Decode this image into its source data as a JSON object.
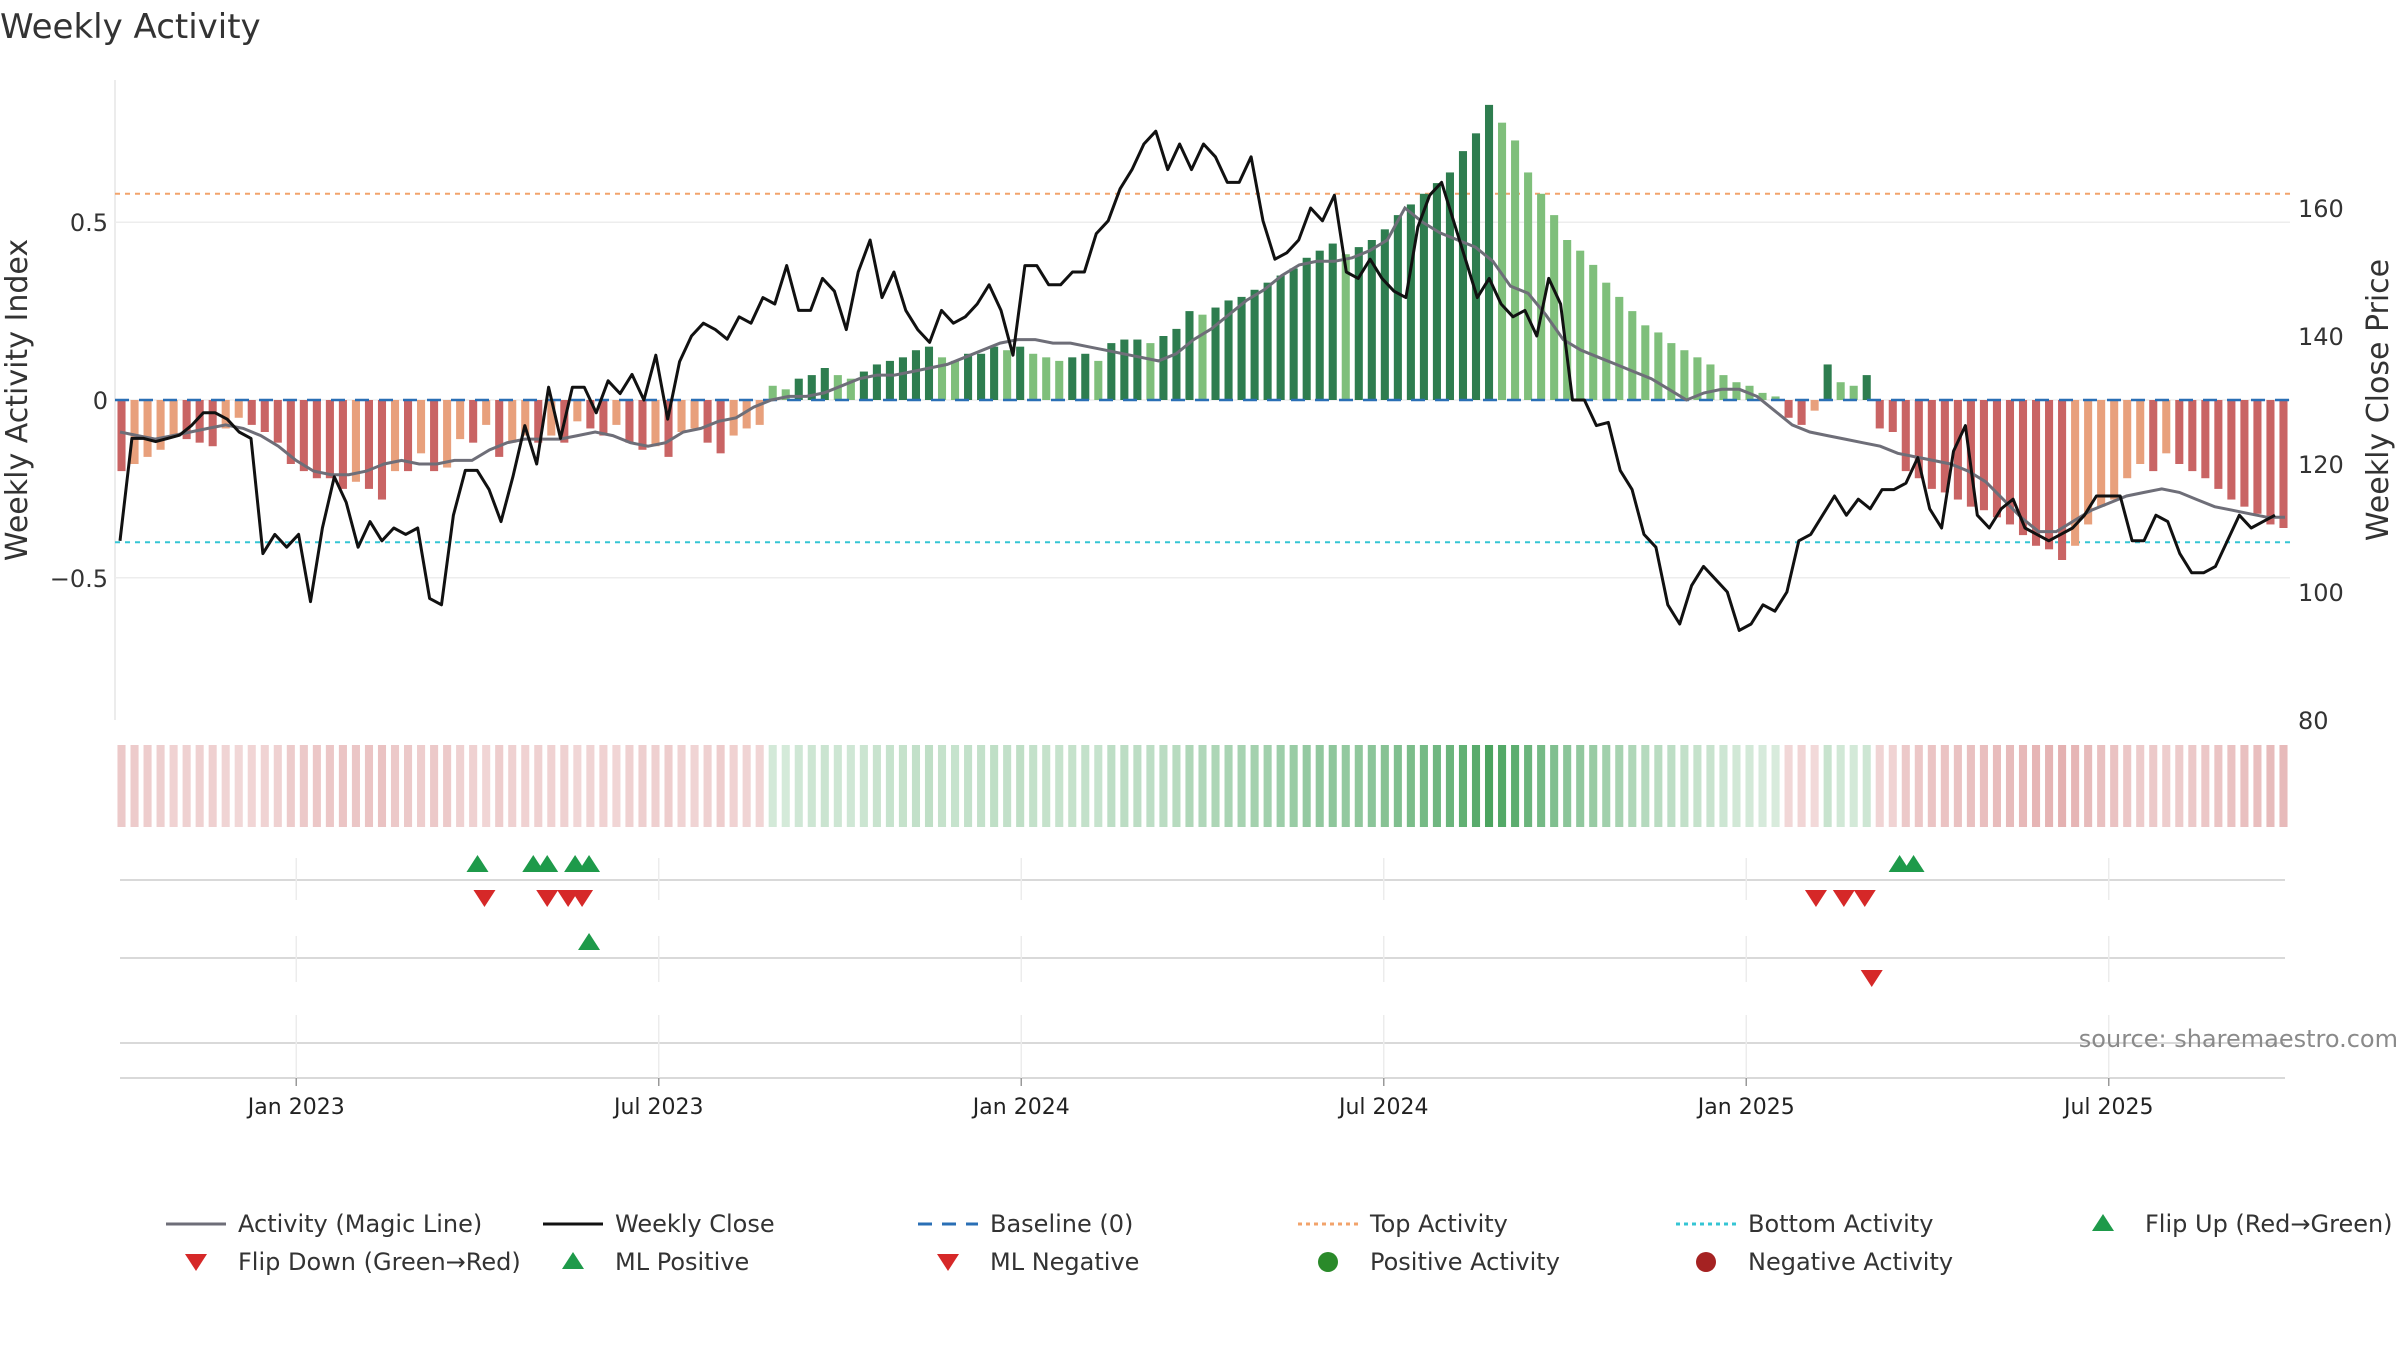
{
  "chart_data": {
    "type": "bar",
    "title": "Weekly Activity",
    "ylabel_left": "Weekly Activity Index",
    "ylabel_right": "Weekly Close Price",
    "left_ticks": [
      {
        "value": 0.5,
        "label": "0.5"
      },
      {
        "value": 0,
        "label": "0"
      },
      {
        "value": -0.5,
        "label": "−0.5"
      }
    ],
    "right_ticks": [
      {
        "value": 160,
        "label": "160"
      },
      {
        "value": 140,
        "label": "140"
      },
      {
        "value": 120,
        "label": "120"
      },
      {
        "value": 100,
        "label": "100"
      },
      {
        "value": 80,
        "label": "80"
      }
    ],
    "left_range": [
      -0.9,
      0.9
    ],
    "right_range": [
      80,
      180
    ],
    "x_range": [
      -13,
      143
    ],
    "x_ticks": [
      {
        "week": 0,
        "label": "Jan 2023"
      },
      {
        "week": 26,
        "label": "Jul 2023"
      },
      {
        "week": 52,
        "label": "Jan 2024"
      },
      {
        "week": 78,
        "label": "Jul 2024"
      },
      {
        "week": 104,
        "label": "Jan 2025"
      },
      {
        "week": 130,
        "label": "Jul 2025"
      }
    ],
    "top_activity": 0.58,
    "bottom_activity": -0.4,
    "baseline": 0,
    "series": {
      "activity_index": [
        -0.2,
        -0.18,
        -0.16,
        -0.14,
        -0.1,
        -0.11,
        -0.12,
        -0.13,
        -0.08,
        -0.05,
        -0.07,
        -0.09,
        -0.12,
        -0.18,
        -0.2,
        -0.22,
        -0.22,
        -0.25,
        -0.23,
        -0.25,
        -0.28,
        -0.2,
        -0.2,
        -0.15,
        -0.2,
        -0.19,
        -0.11,
        -0.12,
        -0.07,
        -0.16,
        -0.12,
        -0.1,
        -0.12,
        -0.1,
        -0.12,
        -0.06,
        -0.08,
        -0.1,
        -0.07,
        -0.12,
        -0.14,
        -0.13,
        -0.16,
        -0.09,
        -0.08,
        -0.12,
        -0.15,
        -0.1,
        -0.08,
        -0.07,
        0.04,
        0.03,
        0.06,
        0.07,
        0.09,
        0.07,
        0.06,
        0.08,
        0.1,
        0.11,
        0.12,
        0.14,
        0.15,
        0.12,
        0.11,
        0.13,
        0.13,
        0.15,
        0.14,
        0.15,
        0.13,
        0.12,
        0.11,
        0.12,
        0.13,
        0.11,
        0.16,
        0.17,
        0.17,
        0.16,
        0.18,
        0.2,
        0.25,
        0.24,
        0.26,
        0.28,
        0.29,
        0.31,
        0.33,
        0.35,
        0.37,
        0.4,
        0.42,
        0.44,
        0.41,
        0.43,
        0.45,
        0.48,
        0.52,
        0.55,
        0.58,
        0.61,
        0.64,
        0.7,
        0.75,
        0.83,
        0.78,
        0.73,
        0.64,
        0.58,
        0.52,
        0.45,
        0.42,
        0.38,
        0.33,
        0.29,
        0.25,
        0.21,
        0.19,
        0.16,
        0.14,
        0.12,
        0.1,
        0.07,
        0.05,
        0.04,
        0.02,
        0.01,
        -0.05,
        -0.07,
        -0.03,
        0.1,
        0.05,
        0.04,
        0.07,
        -0.08,
        -0.09,
        -0.2,
        -0.22,
        -0.25,
        -0.26,
        -0.28,
        -0.3,
        -0.31,
        -0.33,
        -0.35,
        -0.38,
        -0.41,
        -0.42,
        -0.45,
        -0.41,
        -0.35,
        -0.3,
        -0.28,
        -0.22,
        -0.18,
        -0.2,
        -0.15,
        -0.18,
        -0.2,
        -0.22,
        -0.25,
        -0.28,
        -0.3,
        -0.32,
        -0.35,
        -0.36
      ],
      "magic_line": [
        -0.09,
        -0.1,
        -0.11,
        -0.1,
        -0.09,
        -0.08,
        -0.07,
        -0.08,
        -0.1,
        -0.13,
        -0.17,
        -0.2,
        -0.21,
        -0.21,
        -0.2,
        -0.18,
        -0.17,
        -0.18,
        -0.18,
        -0.17,
        -0.17,
        -0.14,
        -0.12,
        -0.11,
        -0.11,
        -0.11,
        -0.1,
        -0.09,
        -0.1,
        -0.12,
        -0.13,
        -0.12,
        -0.09,
        -0.08,
        -0.06,
        -0.05,
        -0.02,
        0,
        0.01,
        0.01,
        0.02,
        0.04,
        0.06,
        0.07,
        0.07,
        0.08,
        0.09,
        0.1,
        0.12,
        0.14,
        0.16,
        0.17,
        0.17,
        0.16,
        0.16,
        0.15,
        0.14,
        0.13,
        0.12,
        0.11,
        0.13,
        0.17,
        0.2,
        0.24,
        0.28,
        0.31,
        0.35,
        0.38,
        0.39,
        0.39,
        0.4,
        0.42,
        0.45,
        0.54,
        0.5,
        0.47,
        0.45,
        0.43,
        0.39,
        0.32,
        0.3,
        0.24,
        0.17,
        0.14,
        0.12,
        0.1,
        0.08,
        0.06,
        0.03,
        0,
        0.02,
        0.03,
        0.03,
        0.01,
        -0.03,
        -0.07,
        -0.09,
        -0.1,
        -0.11,
        -0.12,
        -0.13,
        -0.15,
        -0.16,
        -0.17,
        -0.18,
        -0.2,
        -0.23,
        -0.28,
        -0.33,
        -0.37,
        -0.37,
        -0.34,
        -0.31,
        -0.29,
        -0.27,
        -0.26,
        -0.25,
        -0.26,
        -0.28,
        -0.3,
        -0.31,
        -0.32,
        -0.33,
        -0.33
      ],
      "weekly_close": [
        108,
        124,
        124,
        123.5,
        124,
        124.5,
        126,
        128,
        128,
        127,
        125,
        124,
        106,
        109,
        107,
        109,
        98.5,
        110,
        118,
        114,
        107,
        111,
        108,
        110,
        109,
        110,
        99,
        98,
        112,
        119,
        119,
        116,
        111,
        118,
        126,
        120,
        132,
        124,
        132,
        132,
        128,
        133,
        131,
        134,
        130,
        137,
        127,
        136,
        140,
        142,
        141,
        139.5,
        143,
        142,
        146,
        145,
        151,
        144,
        144,
        149,
        147,
        141,
        150,
        155,
        146,
        150,
        144,
        141,
        139,
        144,
        142,
        143,
        145,
        148,
        144,
        137,
        151,
        151,
        148,
        148,
        150,
        150,
        156,
        158,
        163,
        166,
        170,
        172,
        166,
        170,
        166,
        170,
        168,
        164,
        164,
        168,
        158,
        152,
        153,
        155,
        160,
        158,
        162,
        150,
        149,
        152,
        149,
        147,
        146,
        157,
        162,
        164,
        158,
        152,
        146,
        149,
        145,
        143,
        144,
        140,
        149,
        145,
        130,
        130,
        126,
        126.5,
        119,
        116,
        109,
        107,
        98,
        95,
        101,
        104,
        102,
        100,
        94,
        95,
        98,
        97,
        100,
        108,
        109,
        112,
        115,
        112,
        114.5,
        113,
        116,
        116,
        117,
        121,
        113,
        110,
        122,
        126,
        112,
        110,
        113,
        114.5,
        110,
        109,
        108,
        109,
        110,
        112,
        115,
        115,
        115,
        108,
        108,
        112,
        111,
        106,
        103,
        103,
        104,
        108,
        112,
        110,
        111,
        112
      ],
      "close_x_step": 0.743
    },
    "markers": {
      "flip_up": [
        13,
        17,
        18,
        20,
        21,
        115,
        116
      ],
      "flip_down": [
        13.5,
        18,
        19.5,
        20.5,
        109,
        111,
        112.5
      ],
      "ml_positive": [
        21
      ],
      "ml_negative": [
        113
      ]
    },
    "colors": {
      "strong_green": "#2e7d4f",
      "light_green": "#7fbf7b",
      "strong_red": "#c96464",
      "light_red": "#e8a07c",
      "magic_line": "#6e6e78",
      "close": "#111111",
      "baseline": "#2a6fb5",
      "top_line": "#f2a36b",
      "bottom_line": "#35c5d4",
      "up_marker": "#1e9a4a",
      "down_marker": "#d62828",
      "positive_dot": "#2a8a2a",
      "negative_dot": "#a52222"
    },
    "legend": [
      {
        "kind": "line",
        "label": "Activity (Magic Line)",
        "color": "#6e6e78",
        "dash": ""
      },
      {
        "kind": "line",
        "label": "Weekly Close",
        "color": "#111111",
        "dash": ""
      },
      {
        "kind": "line",
        "label": "Baseline (0)",
        "color": "#2a6fb5",
        "dash": "14,10"
      },
      {
        "kind": "line",
        "label": "Top Activity",
        "color": "#f2a36b",
        "dash": "4,4"
      },
      {
        "kind": "line",
        "label": "Bottom Activity",
        "color": "#35c5d4",
        "dash": "4,4"
      },
      {
        "kind": "up",
        "label": "Flip Up (Red→Green)",
        "color": "#1e9a4a",
        "dash": ""
      },
      {
        "kind": "down",
        "label": "Flip Down (Green→Red)",
        "color": "#d62828",
        "dash": ""
      },
      {
        "kind": "up",
        "label": "ML Positive",
        "color": "#1e9a4a",
        "dash": ""
      },
      {
        "kind": "down",
        "label": "ML Negative",
        "color": "#d62828",
        "dash": ""
      },
      {
        "kind": "dot",
        "label": "Positive Activity",
        "color": "#2a8a2a",
        "dash": ""
      },
      {
        "kind": "dot",
        "label": "Negative Activity",
        "color": "#a52222",
        "dash": ""
      }
    ],
    "source": "source: sharemaestro.com"
  }
}
